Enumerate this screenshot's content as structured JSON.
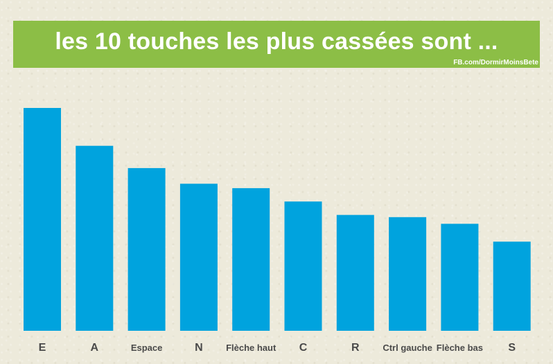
{
  "header": {
    "title": "les 10 touches les plus cassées sont ...",
    "credit": "FB.com/DormirMoinsBete"
  },
  "colors": {
    "background": "#edeadb",
    "banner": "#8cbe46",
    "bar": "#00a3de",
    "label": "#4a4a4a"
  },
  "chart_data": {
    "type": "bar",
    "title": "les 10 touches les plus cassées sont ...",
    "xlabel": "",
    "ylabel": "",
    "categories": [
      "E",
      "A",
      "Espace",
      "N",
      "Flèche haut",
      "C",
      "R",
      "Ctrl gauche",
      "Flèche bas",
      "S"
    ],
    "values": [
      100,
      83,
      73,
      66,
      64,
      58,
      52,
      51,
      48,
      40
    ],
    "ylim": [
      0,
      100
    ],
    "grid": false,
    "legend": "none"
  }
}
